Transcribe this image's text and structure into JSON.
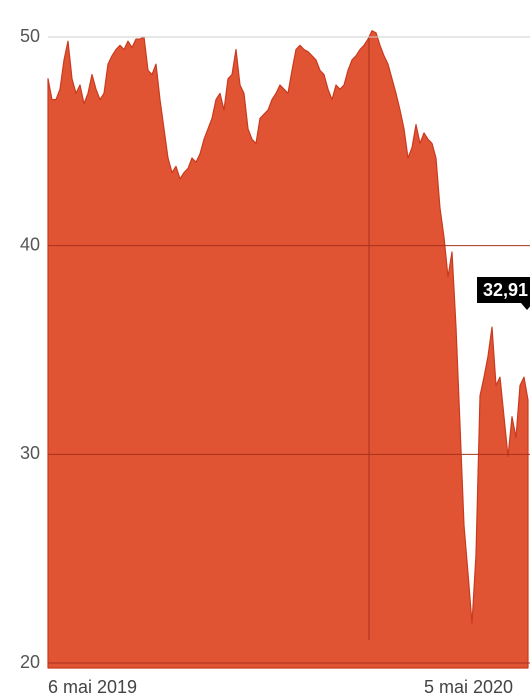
{
  "chart_data": {
    "type": "area",
    "color": "#e05434",
    "line_color": "#c93a1f",
    "grid": true,
    "x": [
      "6 mai 2019",
      null,
      null,
      null,
      null,
      null,
      null,
      null,
      null,
      null,
      null,
      null,
      null,
      null,
      null,
      null,
      null,
      null,
      null,
      null,
      null,
      null,
      null,
      null,
      null,
      null,
      null,
      null,
      null,
      null,
      null,
      null,
      null,
      null,
      null,
      null,
      null,
      null,
      null,
      null,
      null,
      null,
      null,
      null,
      null,
      null,
      null,
      null,
      null,
      null,
      null,
      null,
      null,
      null,
      null,
      null,
      null,
      null,
      null,
      null,
      null,
      null,
      null,
      null,
      null,
      null,
      null,
      null,
      null,
      null,
      null,
      null,
      null,
      null,
      null,
      null,
      null,
      null,
      null,
      null,
      null,
      null,
      null,
      null,
      null,
      null,
      null,
      null,
      null,
      null,
      null,
      null,
      null,
      null,
      "5 mai 2020",
      null,
      null,
      null,
      null,
      null,
      null,
      null,
      null,
      null,
      null,
      null,
      null,
      null,
      null,
      null,
      null,
      null,
      null,
      null,
      null,
      null,
      null,
      null,
      null,
      null,
      null
    ],
    "values": [
      48.0,
      47.0,
      47.0,
      47.5,
      48.9,
      49.8,
      48.0,
      47.3,
      47.7,
      46.8,
      47.3,
      48.2,
      47.5,
      47.0,
      47.3,
      48.7,
      49.1,
      49.4,
      49.6,
      49.4,
      49.8,
      49.5,
      49.9,
      49.9,
      50.0,
      48.4,
      48.2,
      48.7,
      47.0,
      45.6,
      44.2,
      43.5,
      43.8,
      43.2,
      43.5,
      43.7,
      44.2,
      44.0,
      44.4,
      45.1,
      45.6,
      46.1,
      47.0,
      47.3,
      46.5,
      48.0,
      48.2,
      49.4,
      47.7,
      47.3,
      45.6,
      45.1,
      44.9,
      46.1,
      46.3,
      46.5,
      47.0,
      47.3,
      47.7,
      47.5,
      47.3,
      48.4,
      49.4,
      49.6,
      49.4,
      49.3,
      49.1,
      48.9,
      48.4,
      48.2,
      47.5,
      47.0,
      47.7,
      47.5,
      47.7,
      48.4,
      48.9,
      49.1,
      49.4,
      49.6,
      49.9,
      50.3,
      50.2,
      49.6,
      49.1,
      48.7,
      48.0,
      47.3,
      46.5,
      45.6,
      44.2,
      44.7,
      45.8,
      44.9,
      45.4,
      45.1,
      44.9,
      44.2,
      41.8,
      40.4,
      38.5,
      39.7,
      36.1,
      31.4,
      26.6,
      24.3,
      21.9,
      25.2,
      32.8,
      33.7,
      34.7,
      36.1,
      33.3,
      33.7,
      31.8,
      29.9,
      31.8,
      30.8,
      33.3,
      33.7,
      32.6
    ],
    "ylim": [
      20,
      50
    ],
    "yticks": [
      20,
      30,
      40,
      50
    ],
    "annotation": "32,91"
  }
}
